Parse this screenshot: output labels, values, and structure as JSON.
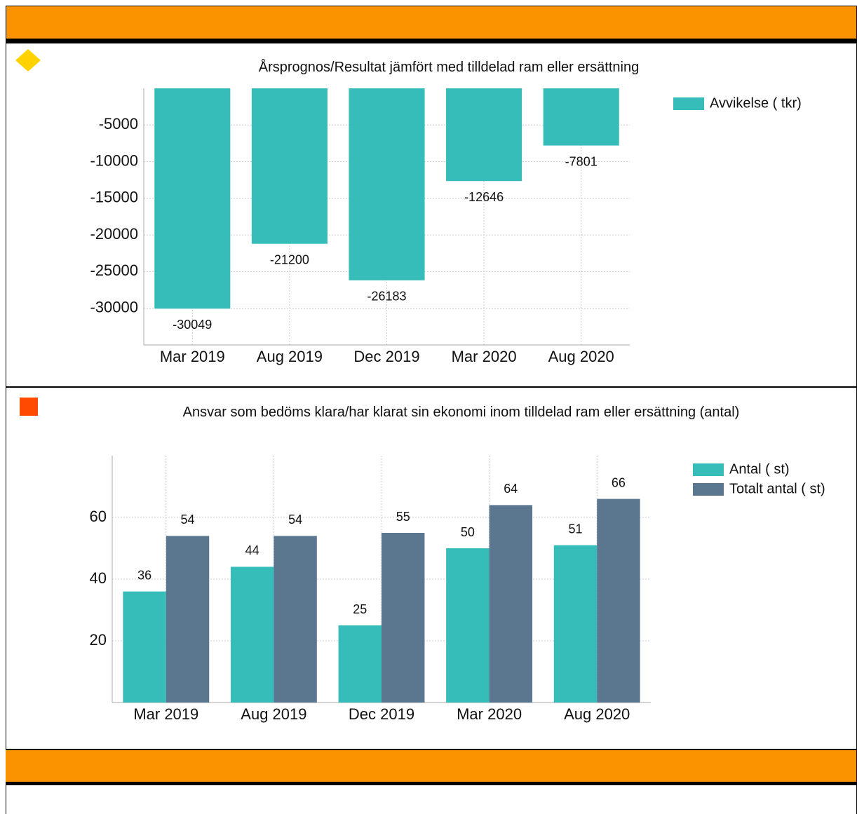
{
  "chart_data": [
    {
      "type": "bar",
      "title": "Årsprognos/Resultat jämfört med tilldelad ram eller ersättning",
      "categories": [
        "Mar 2019",
        "Aug 2019",
        "Dec 2019",
        "Mar 2020",
        "Aug 2020"
      ],
      "series": [
        {
          "name": "Avvikelse ( tkr)",
          "color": "#36bcb9",
          "values": [
            -30049,
            -21200,
            -26183,
            -12646,
            -7801
          ]
        }
      ],
      "ylim": [
        -35000,
        0
      ],
      "yticks": [
        -30000,
        -25000,
        -20000,
        -15000,
        -10000,
        -5000
      ],
      "grid": true,
      "legend": "right"
    },
    {
      "type": "bar",
      "title": "Ansvar som bedöms klara/har klarat sin ekonomi inom tilldelad ram eller ersättning (antal)",
      "categories": [
        "Mar 2019",
        "Aug 2019",
        "Dec 2019",
        "Mar 2020",
        "Aug 2020"
      ],
      "series": [
        {
          "name": "Antal ( st)",
          "color": "#36bcb9",
          "values": [
            36,
            44,
            25,
            50,
            51
          ]
        },
        {
          "name": "Totalt antal ( st)",
          "color": "#5b7790",
          "values": [
            54,
            54,
            55,
            64,
            66
          ]
        }
      ],
      "ylim": [
        0,
        80
      ],
      "yticks": [
        20,
        40,
        60
      ],
      "grid": true,
      "legend": "right"
    }
  ]
}
